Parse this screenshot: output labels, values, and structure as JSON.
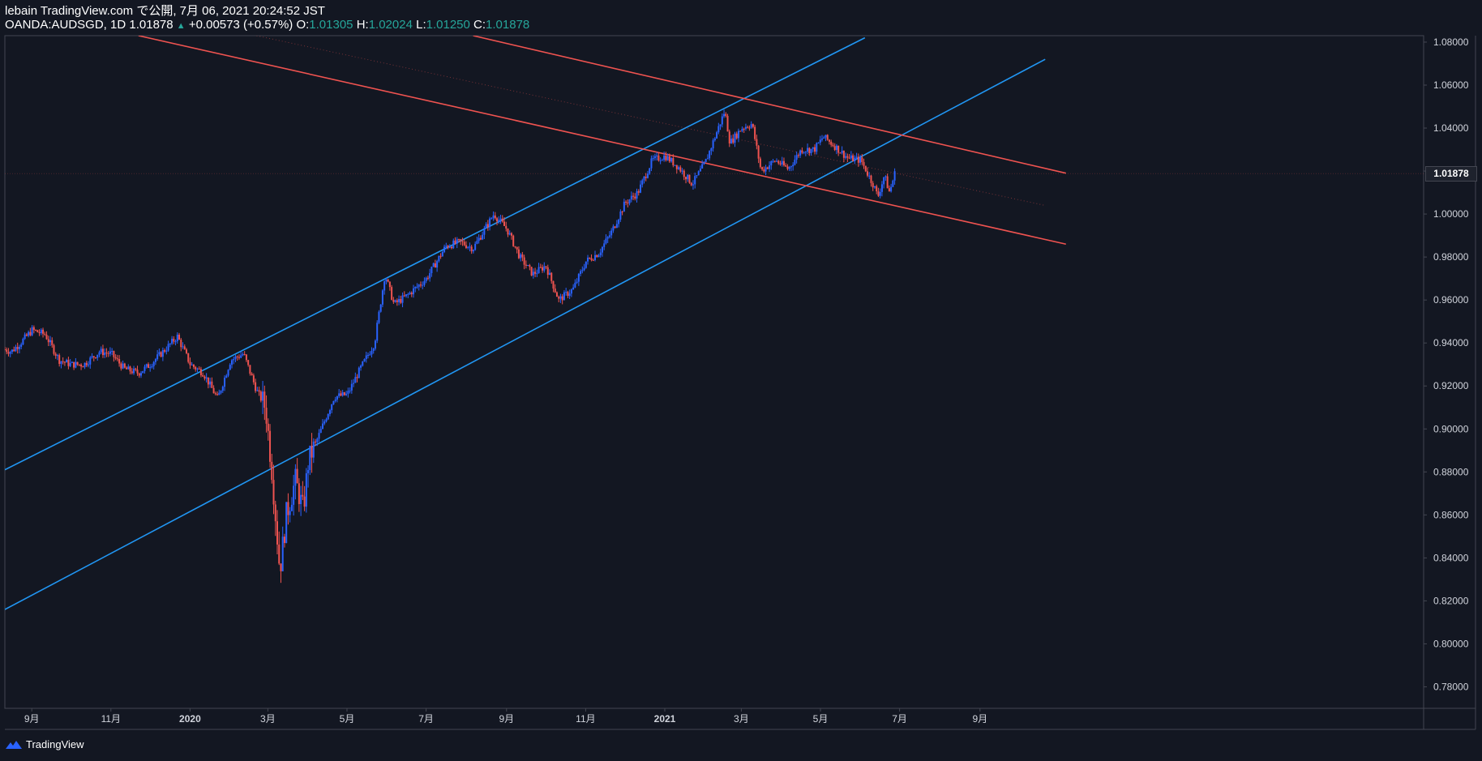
{
  "header": {
    "publish_line": "lebain TradingView.com で公開, 7月 06, 2021 20:24:52 JST",
    "symbol": "OANDA:AUDSGD, 1D",
    "last": "1.01878",
    "up_arrow": "▲",
    "change": "+0.00573 (+0.57%)",
    "o_label": "O:",
    "o_value": "1.01305",
    "h_label": "H:",
    "h_value": "1.02024",
    "l_label": "L:",
    "l_value": "1.01250",
    "c_label": "C:",
    "c_value": "1.01878"
  },
  "footer": {
    "brand": "TradingView",
    "logo_icon": "tradingview-logo-icon"
  },
  "colors": {
    "background": "#131722",
    "up": "#2962ff",
    "down": "#ef5350",
    "channel_up": "#2196f3",
    "channel_down": "#ef5350",
    "text": "#d1d4dc",
    "grid_border": "#434651"
  },
  "chart_data": {
    "type": "candlestick",
    "symbol": "OANDA:AUDSGD",
    "interval": "1D",
    "last_price_label": "1.01878",
    "ylim": [
      0.77,
      1.083
    ],
    "y_ticks": [
      "1.08000",
      "1.06000",
      "1.04000",
      "1.02000",
      "1.00000",
      "0.98000",
      "0.96000",
      "0.94000",
      "0.92000",
      "0.90000",
      "0.88000",
      "0.86000",
      "0.84000",
      "0.82000",
      "0.80000",
      "0.78000"
    ],
    "x_ticks": [
      "9月",
      "11月",
      "2020",
      "3月",
      "5月",
      "7月",
      "9月",
      "11月",
      "2021",
      "3月",
      "5月",
      "7月",
      "9月"
    ],
    "close_path": [
      [
        "2019-08-20",
        0.937
      ],
      [
        "2019-08-25",
        0.936
      ],
      [
        "2019-09-01",
        0.94
      ],
      [
        "2019-09-10",
        0.946
      ],
      [
        "2019-09-20",
        0.944
      ],
      [
        "2019-10-01",
        0.932
      ],
      [
        "2019-10-10",
        0.93
      ],
      [
        "2019-10-20",
        0.93
      ],
      [
        "2019-11-01",
        0.936
      ],
      [
        "2019-11-10",
        0.935
      ],
      [
        "2019-11-20",
        0.928
      ],
      [
        "2019-12-01",
        0.926
      ],
      [
        "2019-12-10",
        0.93
      ],
      [
        "2019-12-20",
        0.936
      ],
      [
        "2019-12-31",
        0.943
      ],
      [
        "2020-01-10",
        0.93
      ],
      [
        "2020-01-20",
        0.926
      ],
      [
        "2020-01-31",
        0.914
      ],
      [
        "2020-02-10",
        0.932
      ],
      [
        "2020-02-20",
        0.935
      ],
      [
        "2020-03-01",
        0.918
      ],
      [
        "2020-03-08",
        0.91
      ],
      [
        "2020-03-13",
        0.88
      ],
      [
        "2020-03-19",
        0.834
      ],
      [
        "2020-03-24",
        0.86
      ],
      [
        "2020-03-31",
        0.876
      ],
      [
        "2020-04-06",
        0.862
      ],
      [
        "2020-04-10",
        0.885
      ],
      [
        "2020-04-20",
        0.9
      ],
      [
        "2020-04-30",
        0.915
      ],
      [
        "2020-05-10",
        0.916
      ],
      [
        "2020-05-20",
        0.928
      ],
      [
        "2020-05-31",
        0.94
      ],
      [
        "2020-06-08",
        0.972
      ],
      [
        "2020-06-15",
        0.958
      ],
      [
        "2020-06-25",
        0.962
      ],
      [
        "2020-07-10",
        0.97
      ],
      [
        "2020-07-25",
        0.985
      ],
      [
        "2020-08-05",
        0.987
      ],
      [
        "2020-08-15",
        0.984
      ],
      [
        "2020-08-31",
        1.0
      ],
      [
        "2020-09-10",
        0.993
      ],
      [
        "2020-09-20",
        0.98
      ],
      [
        "2020-09-30",
        0.972
      ],
      [
        "2020-10-10",
        0.976
      ],
      [
        "2020-10-20",
        0.96
      ],
      [
        "2020-10-31",
        0.965
      ],
      [
        "2020-11-10",
        0.978
      ],
      [
        "2020-11-20",
        0.982
      ],
      [
        "2020-11-30",
        0.992
      ],
      [
        "2020-12-10",
        1.005
      ],
      [
        "2020-12-20",
        1.01
      ],
      [
        "2020-12-31",
        1.025
      ],
      [
        "2021-01-10",
        1.027
      ],
      [
        "2021-01-20",
        1.022
      ],
      [
        "2021-01-31",
        1.014
      ],
      [
        "2021-02-10",
        1.024
      ],
      [
        "2021-02-20",
        1.04
      ],
      [
        "2021-02-25",
        1.048
      ],
      [
        "2021-03-01",
        1.033
      ],
      [
        "2021-03-10",
        1.04
      ],
      [
        "2021-03-18",
        1.042
      ],
      [
        "2021-03-25",
        1.02
      ],
      [
        "2021-04-05",
        1.025
      ],
      [
        "2021-04-15",
        1.021
      ],
      [
        "2021-04-25",
        1.03
      ],
      [
        "2021-05-05",
        1.03
      ],
      [
        "2021-05-12",
        1.036
      ],
      [
        "2021-05-20",
        1.032
      ],
      [
        "2021-05-31",
        1.026
      ],
      [
        "2021-06-10",
        1.025
      ],
      [
        "2021-06-20",
        1.013
      ],
      [
        "2021-06-23",
        1.008
      ],
      [
        "2021-06-28",
        1.018
      ],
      [
        "2021-07-02",
        1.01
      ],
      [
        "2021-07-06",
        1.0188
      ]
    ],
    "trendlines": [
      {
        "color": "#2196f3",
        "points": [
          [
            "2019-08-20",
            0.881
          ],
          [
            "2021-06-13",
            1.082
          ]
        ]
      },
      {
        "color": "#2196f3",
        "points": [
          [
            "2019-08-20",
            0.816
          ],
          [
            "2021-10-30",
            1.072
          ]
        ]
      },
      {
        "color": "#ef5350",
        "points": [
          [
            "2019-12-01",
            1.083
          ],
          [
            "2021-11-15",
            0.986
          ]
        ]
      },
      {
        "color": "#ef5350",
        "points": [
          [
            "2020-08-15",
            1.083
          ],
          [
            "2021-11-15",
            1.019
          ]
        ]
      }
    ]
  }
}
